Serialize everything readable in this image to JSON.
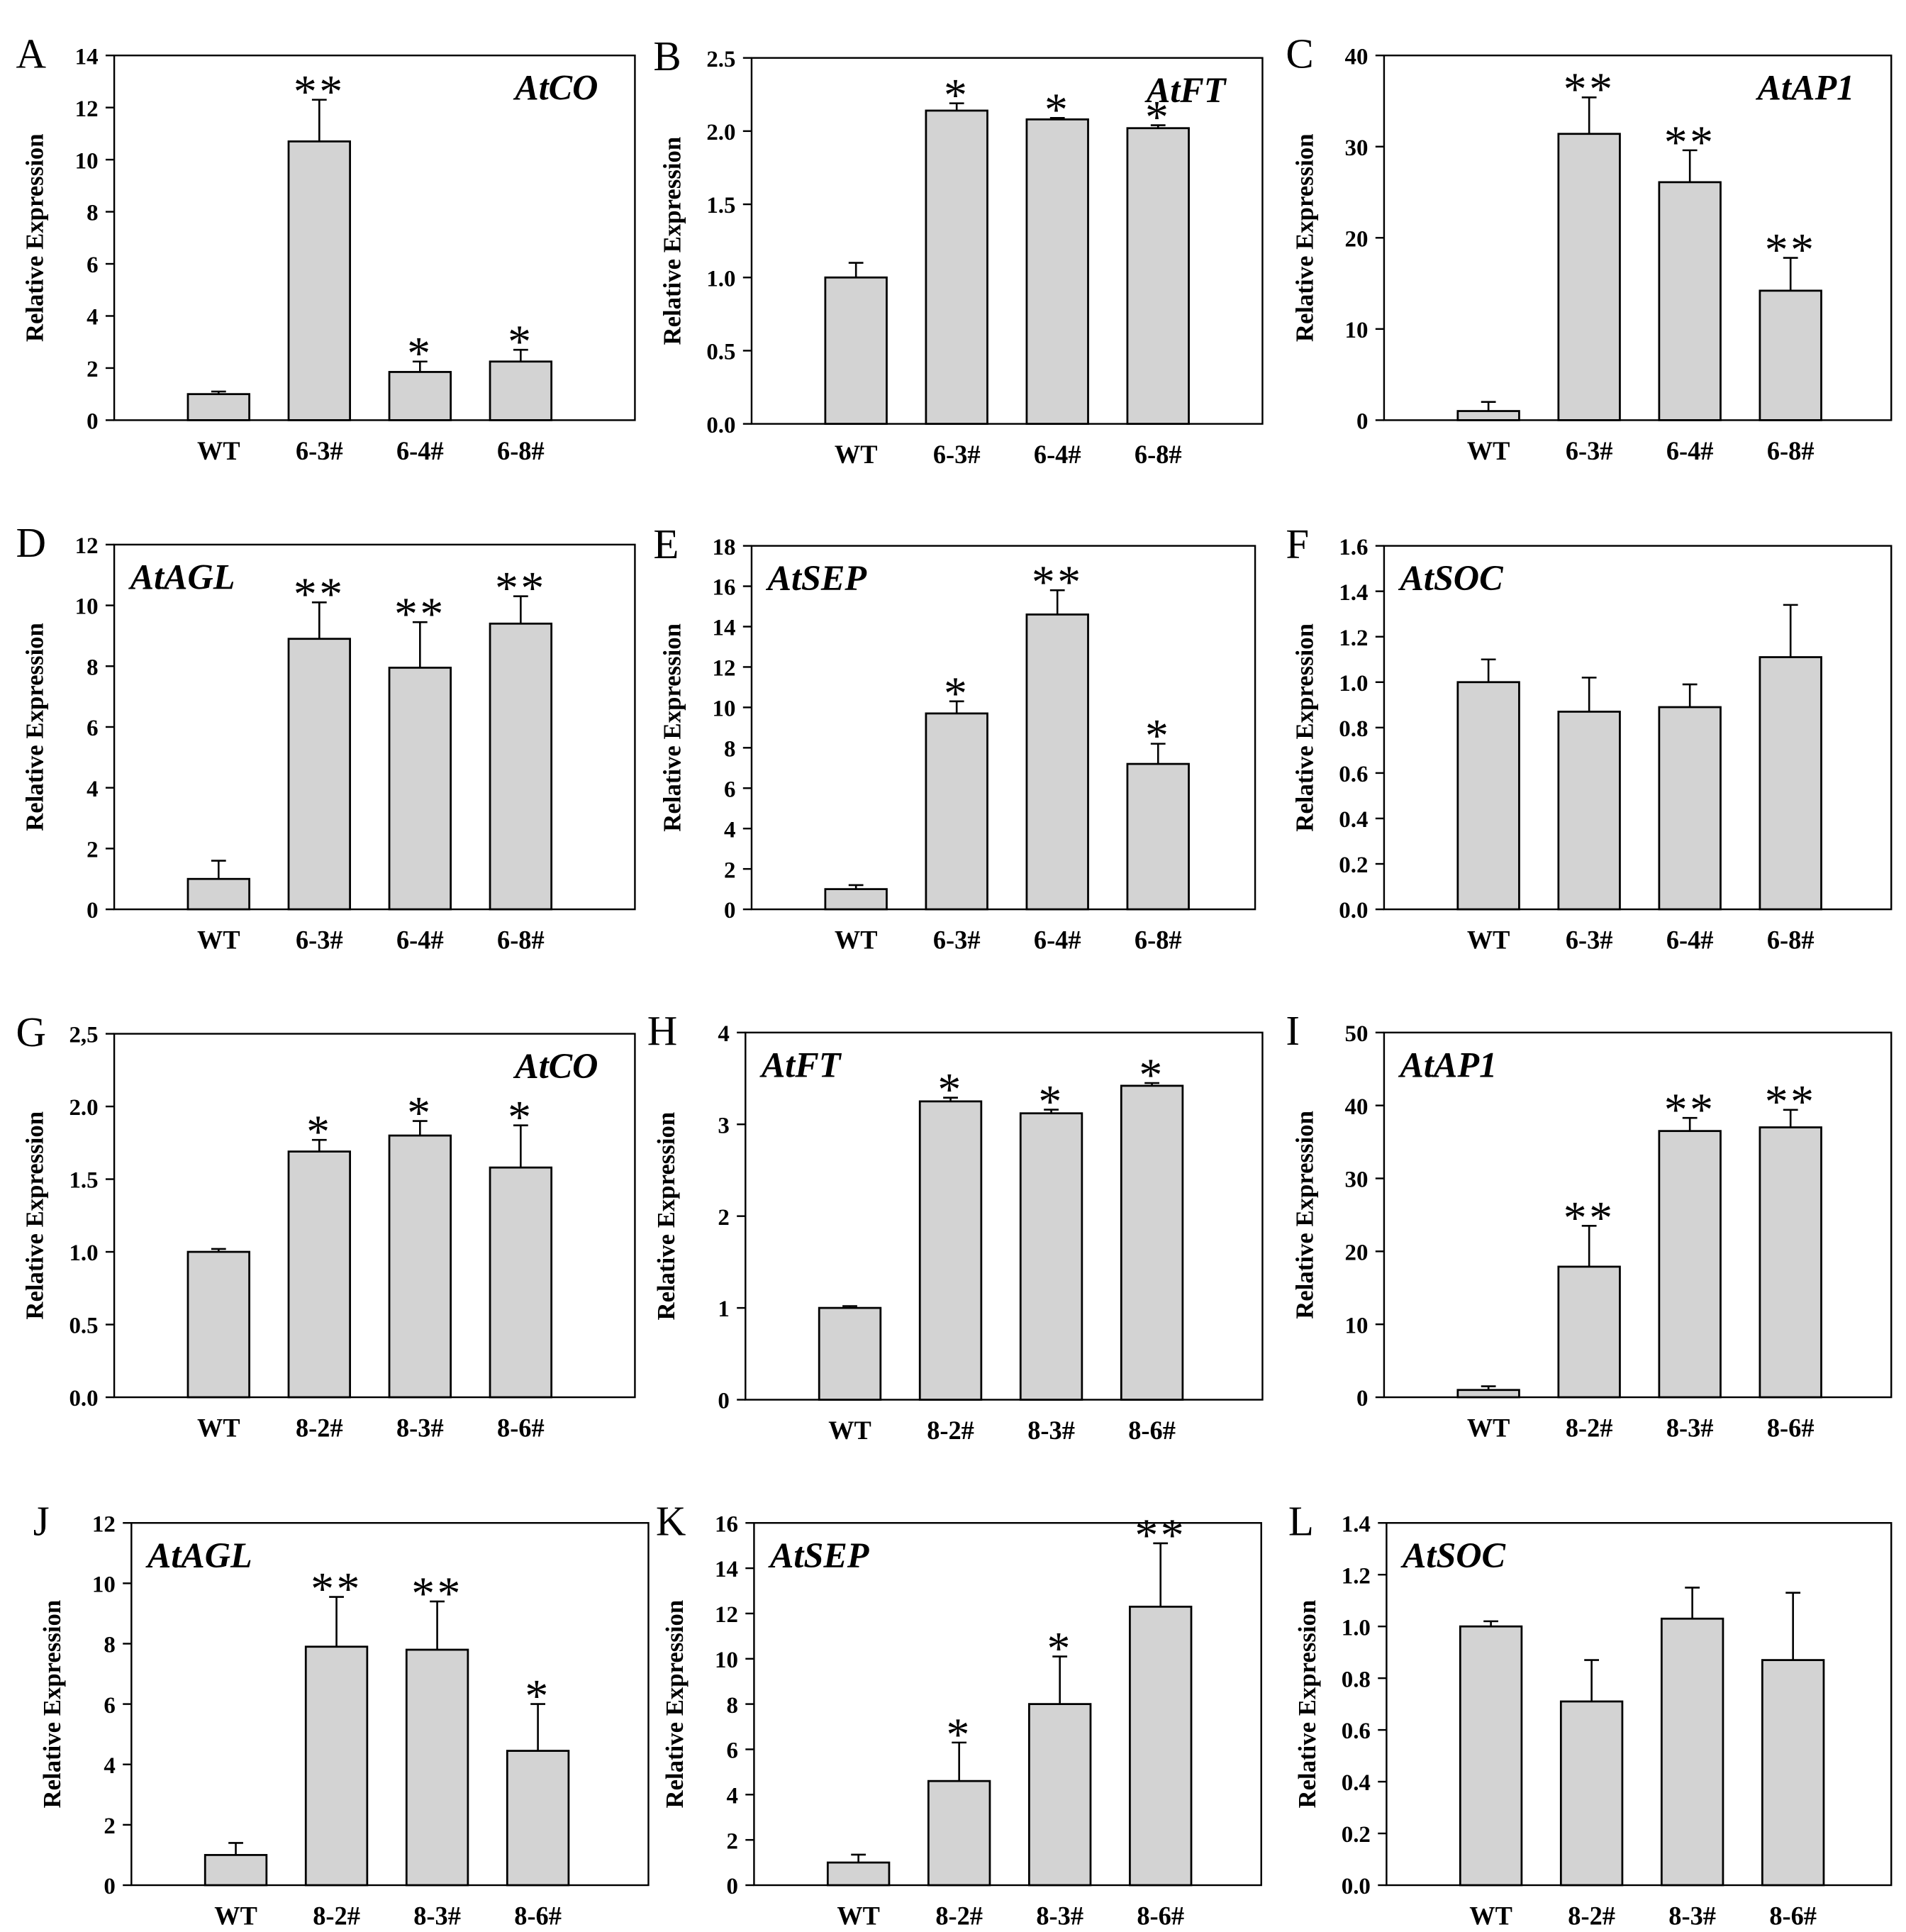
{
  "style": {
    "bar_color": "#d3d3d3",
    "axis_color": "#000000",
    "background": "#ffffff"
  },
  "chart_data": [
    {
      "panel": "A",
      "type": "bar",
      "title": "AtCO",
      "title_position": "top-right",
      "categories": [
        "WT",
        "6-3#",
        "6-4#",
        "6-8#"
      ],
      "values": [
        1.0,
        10.7,
        1.85,
        2.25
      ],
      "errors": [
        0.1,
        1.6,
        0.4,
        0.45
      ],
      "significance": [
        "",
        "**",
        "*",
        "*"
      ],
      "ylim": [
        0,
        14
      ],
      "yticks": [
        "0",
        "2",
        "4",
        "6",
        "8",
        "10",
        "12",
        "14"
      ],
      "ylabel": "Relative Expression"
    },
    {
      "panel": "B",
      "type": "bar",
      "title": "AtFT",
      "title_position": "top-right",
      "categories": [
        "WT",
        "6-3#",
        "6-4#",
        "6-8#"
      ],
      "values": [
        1.0,
        2.14,
        2.08,
        2.02
      ],
      "errors": [
        0.1,
        0.05,
        0.01,
        0.02
      ],
      "significance": [
        "",
        "*",
        "*",
        "*"
      ],
      "ylim": [
        0,
        2.5
      ],
      "yticks": [
        "0.0",
        "0.5",
        "1.0",
        "1.5",
        "2.0",
        "2.5"
      ],
      "ylabel": "Relative Expression"
    },
    {
      "panel": "C",
      "type": "bar",
      "title": "AtAP1",
      "title_position": "top-right",
      "categories": [
        "WT",
        "6-3#",
        "6-4#",
        "6-8#"
      ],
      "values": [
        1.0,
        31.4,
        26.1,
        14.2
      ],
      "errors": [
        1.0,
        4.0,
        3.5,
        3.6
      ],
      "significance": [
        "",
        "**",
        "**",
        "**"
      ],
      "ylim": [
        0,
        40
      ],
      "yticks": [
        "0",
        "10",
        "20",
        "30",
        "40"
      ],
      "ylabel": "Relative Expression"
    },
    {
      "panel": "D",
      "type": "bar",
      "title": "AtAGL",
      "title_position": "top-left",
      "categories": [
        "WT",
        "6-3#",
        "6-4#",
        "6-8#"
      ],
      "values": [
        1.0,
        8.9,
        7.95,
        9.4
      ],
      "errors": [
        0.6,
        1.2,
        1.5,
        0.9
      ],
      "significance": [
        "",
        "**",
        "**",
        "**"
      ],
      "ylim": [
        0,
        12
      ],
      "yticks": [
        "0",
        "2",
        "4",
        "6",
        "8",
        "10",
        "12"
      ],
      "ylabel": "Relative Expression"
    },
    {
      "panel": "E",
      "type": "bar",
      "title": "AtSEP",
      "title_position": "top-left",
      "categories": [
        "WT",
        "6-3#",
        "6-4#",
        "6-8#"
      ],
      "values": [
        1.0,
        9.7,
        14.6,
        7.2
      ],
      "errors": [
        0.2,
        0.6,
        1.2,
        1.0
      ],
      "significance": [
        "",
        "*",
        "**",
        "*"
      ],
      "ylim": [
        0,
        18
      ],
      "yticks": [
        "0",
        "2",
        "4",
        "6",
        "8",
        "10",
        "12",
        "14",
        "16",
        "18"
      ],
      "ylabel": "Relative Expression"
    },
    {
      "panel": "F",
      "type": "bar",
      "title": "AtSOC",
      "title_position": "top-left",
      "categories": [
        "WT",
        "6-3#",
        "6-4#",
        "6-8#"
      ],
      "values": [
        1.0,
        0.87,
        0.89,
        1.11
      ],
      "errors": [
        0.1,
        0.15,
        0.1,
        0.23
      ],
      "significance": [
        "",
        "",
        "",
        ""
      ],
      "ylim": [
        0,
        1.6
      ],
      "yticks": [
        "0.0",
        "0.2",
        "0.4",
        "0.6",
        "0.8",
        "1.0",
        "1.2",
        "1.4",
        "1.6"
      ],
      "ylabel": "Relative Expression"
    },
    {
      "panel": "G",
      "type": "bar",
      "title": "AtCO",
      "title_position": "top-right",
      "categories": [
        "WT",
        "8-2#",
        "8-3#",
        "8-6#"
      ],
      "values": [
        1.0,
        1.69,
        1.8,
        1.58
      ],
      "errors": [
        0.02,
        0.08,
        0.1,
        0.29
      ],
      "significance": [
        "",
        "*",
        "*",
        "*"
      ],
      "ylim": [
        0,
        2.5
      ],
      "yticks": [
        "0.0",
        "0.5",
        "1.0",
        "1.5",
        "2.0",
        "2,5"
      ],
      "ylabel": "Relative Expression"
    },
    {
      "panel": "H",
      "type": "bar",
      "title": "AtFT",
      "title_position": "top-left",
      "categories": [
        "WT",
        "8-2#",
        "8-3#",
        "8-6#"
      ],
      "values": [
        1.0,
        3.25,
        3.12,
        3.42
      ],
      "errors": [
        0.02,
        0.04,
        0.04,
        0.03
      ],
      "significance": [
        "",
        "*",
        "*",
        "*"
      ],
      "ylim": [
        0,
        4
      ],
      "yticks": [
        "0",
        "1",
        "2",
        "3",
        "4"
      ],
      "ylabel": "Relative Expression"
    },
    {
      "panel": "I",
      "type": "bar",
      "title": "AtAP1",
      "title_position": "top-left",
      "categories": [
        "WT",
        "8-2#",
        "8-3#",
        "8-6#"
      ],
      "values": [
        1.0,
        17.9,
        36.5,
        37.0
      ],
      "errors": [
        0.5,
        5.6,
        1.8,
        2.4
      ],
      "significance": [
        "",
        "**",
        "**",
        "**"
      ],
      "ylim": [
        0,
        50
      ],
      "yticks": [
        "0",
        "10",
        "20",
        "30",
        "40",
        "50"
      ],
      "ylabel": "Relative Expression"
    },
    {
      "panel": "J",
      "type": "bar",
      "title": "AtAGL",
      "title_position": "top-left",
      "categories": [
        "WT",
        "8-2#",
        "8-3#",
        "8-6#"
      ],
      "values": [
        1.0,
        7.9,
        7.8,
        4.45
      ],
      "errors": [
        0.4,
        1.65,
        1.6,
        1.55
      ],
      "significance": [
        "",
        "**",
        "**",
        "*"
      ],
      "ylim": [
        0,
        12
      ],
      "yticks": [
        "0",
        "2",
        "4",
        "6",
        "8",
        "10",
        "12"
      ],
      "ylabel": "Relative Expression"
    },
    {
      "panel": "K",
      "type": "bar",
      "title": "AtSEP",
      "title_position": "top-left",
      "categories": [
        "WT",
        "8-2#",
        "8-3#",
        "8-6#"
      ],
      "values": [
        1.0,
        4.6,
        8.0,
        12.3
      ],
      "errors": [
        0.35,
        1.7,
        2.1,
        2.8
      ],
      "significance": [
        "",
        "*",
        "*",
        "**"
      ],
      "ylim": [
        0,
        16
      ],
      "yticks": [
        "0",
        "2",
        "4",
        "6",
        "8",
        "10",
        "12",
        "14",
        "16"
      ],
      "ylabel": "Relative Expression"
    },
    {
      "panel": "L",
      "type": "bar",
      "title": "AtSOC",
      "title_position": "top-left",
      "categories": [
        "WT",
        "8-2#",
        "8-3#",
        "8-6#"
      ],
      "values": [
        1.0,
        0.71,
        1.03,
        0.87
      ],
      "errors": [
        0.02,
        0.16,
        0.12,
        0.26
      ],
      "significance": [
        "",
        "",
        "",
        ""
      ],
      "ylim": [
        0,
        1.4
      ],
      "yticks": [
        "0.0",
        "0.2",
        "0.4",
        "0.6",
        "0.8",
        "1.0",
        "1.2",
        "1.4"
      ],
      "ylabel": "Relative Expression"
    }
  ]
}
